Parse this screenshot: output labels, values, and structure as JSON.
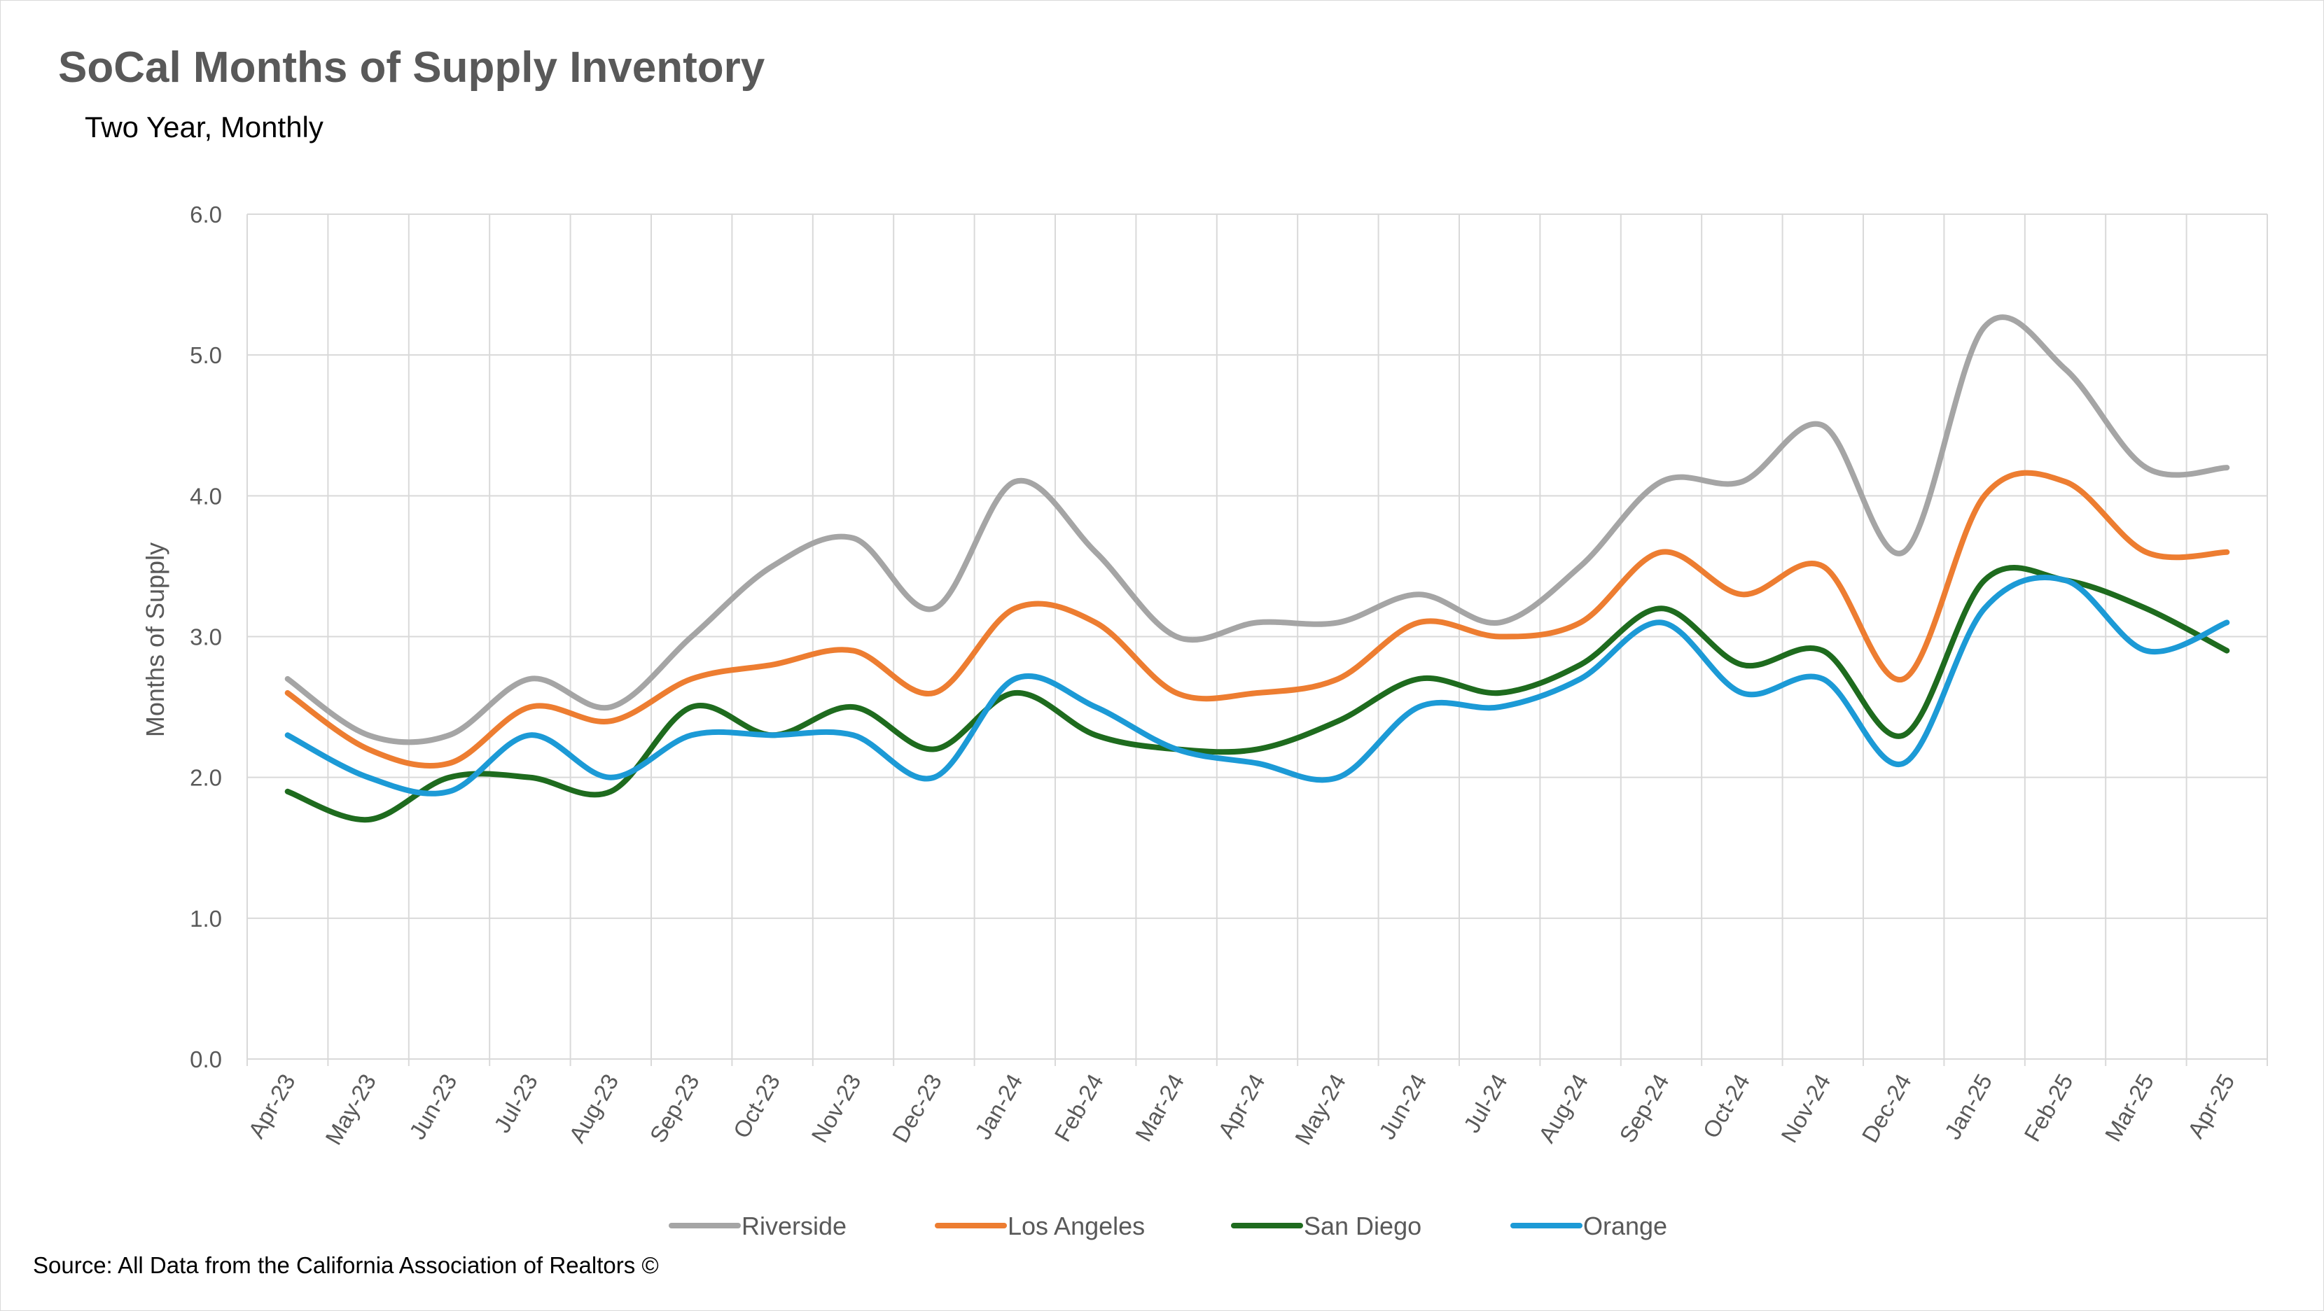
{
  "title": "SoCal Months of Supply Inventory",
  "subtitle": "Two Year, Monthly",
  "source": "Source: All Data from the California Association of Realtors ©",
  "chart_data": {
    "type": "line",
    "smoothed": true,
    "title": "SoCal Months of Supply Inventory",
    "subtitle": "Two Year, Monthly",
    "xlabel": "",
    "ylabel": "Months of Supply",
    "ylim": [
      0,
      6
    ],
    "yticks": [
      "0.0",
      "1.0",
      "2.0",
      "3.0",
      "4.0",
      "5.0",
      "6.0"
    ],
    "grid": "both",
    "legend_position": "bottom",
    "categories": [
      "Apr-23",
      "May-23",
      "Jun-23",
      "Jul-23",
      "Aug-23",
      "Sep-23",
      "Oct-23",
      "Nov-23",
      "Dec-23",
      "Jan-24",
      "Feb-24",
      "Mar-24",
      "Apr-24",
      "May-24",
      "Jun-24",
      "Jul-24",
      "Aug-24",
      "Sep-24",
      "Oct-24",
      "Nov-24",
      "Dec-24",
      "Jan-25",
      "Feb-25",
      "Mar-25",
      "Apr-25"
    ],
    "series": [
      {
        "name": "Riverside",
        "color": "#a5a5a5",
        "values": [
          2.7,
          2.3,
          2.3,
          2.7,
          2.5,
          3.0,
          3.5,
          3.7,
          3.2,
          4.1,
          3.6,
          3.0,
          3.1,
          3.1,
          3.3,
          3.1,
          3.5,
          4.1,
          4.1,
          4.5,
          3.6,
          5.2,
          4.9,
          4.2,
          4.2
        ]
      },
      {
        "name": "Los Angeles",
        "color": "#ed7d31",
        "values": [
          2.6,
          2.2,
          2.1,
          2.5,
          2.4,
          2.7,
          2.8,
          2.9,
          2.6,
          3.2,
          3.1,
          2.6,
          2.6,
          2.7,
          3.1,
          3.0,
          3.1,
          3.6,
          3.3,
          3.5,
          2.7,
          4.0,
          4.1,
          3.6,
          3.6
        ]
      },
      {
        "name": "San Diego",
        "color": "#1e6b1e",
        "values": [
          1.9,
          1.7,
          2.0,
          2.0,
          1.9,
          2.5,
          2.3,
          2.5,
          2.2,
          2.6,
          2.3,
          2.2,
          2.2,
          2.4,
          2.7,
          2.6,
          2.8,
          3.2,
          2.8,
          2.9,
          2.3,
          3.4,
          3.4,
          3.2,
          2.9
        ]
      },
      {
        "name": "Orange",
        "color": "#1c9ad6",
        "values": [
          2.3,
          2.0,
          1.9,
          2.3,
          2.0,
          2.3,
          2.3,
          2.3,
          2.0,
          2.7,
          2.5,
          2.2,
          2.1,
          2.0,
          2.5,
          2.5,
          2.7,
          3.1,
          2.6,
          2.7,
          2.1,
          3.2,
          3.4,
          2.9,
          3.1
        ]
      }
    ]
  }
}
